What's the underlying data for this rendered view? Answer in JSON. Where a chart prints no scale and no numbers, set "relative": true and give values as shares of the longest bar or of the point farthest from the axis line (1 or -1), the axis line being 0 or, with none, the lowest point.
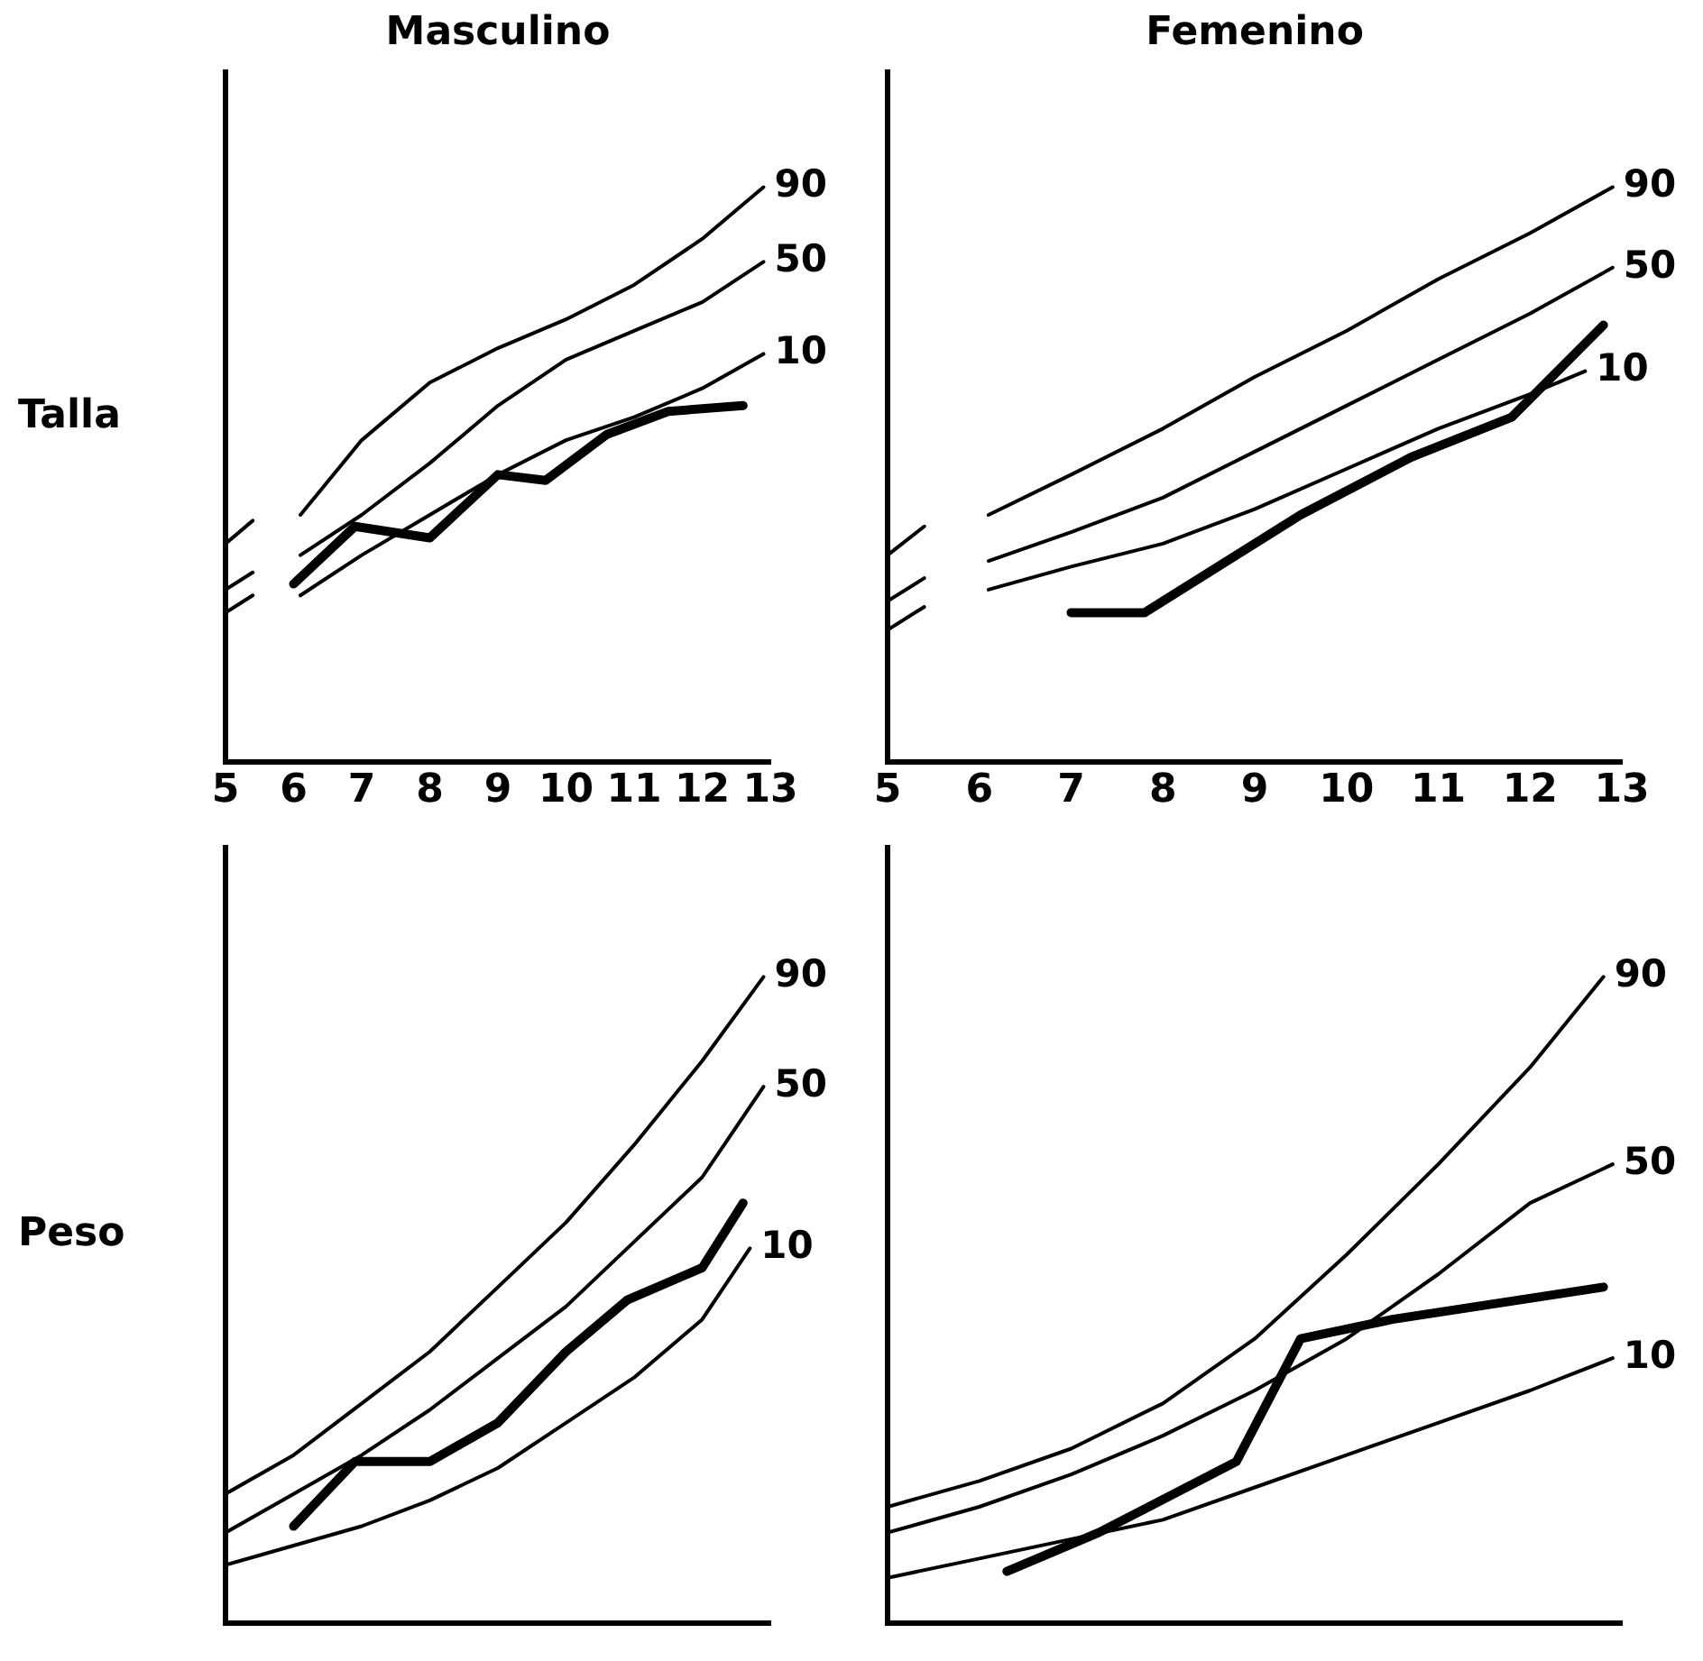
{
  "chart_data": [
    {
      "type": "line",
      "title": "Masculino",
      "ylabel": "Talla",
      "relative": true,
      "xlim": [
        5,
        13
      ],
      "xticks": [
        5,
        6,
        7,
        8,
        9,
        10,
        11,
        12,
        13
      ],
      "tick_labels": "x",
      "marker": "none",
      "grid": false,
      "series": [
        {
          "name": "90",
          "color": "#000000",
          "x": [
            5,
            5.4,
            5.7,
            6.1,
            7,
            8,
            9,
            10,
            11,
            12,
            12.9
          ],
          "values": [
            0.38,
            0.42,
            null,
            0.43,
            0.56,
            0.66,
            0.72,
            0.77,
            0.83,
            0.91,
            1
          ]
        },
        {
          "name": "50",
          "color": "#000000",
          "x": [
            5,
            5.4,
            5.7,
            6.1,
            7,
            8,
            9,
            10,
            11,
            12,
            12.9
          ],
          "values": [
            0.3,
            0.33,
            null,
            0.36,
            0.43,
            0.52,
            0.62,
            0.7,
            0.75,
            0.8,
            0.87
          ]
        },
        {
          "name": "10",
          "color": "#000000",
          "x": [
            5,
            5.4,
            5.7,
            6.1,
            7,
            8,
            9,
            10,
            11,
            12,
            12.9
          ],
          "values": [
            0.26,
            0.29,
            null,
            0.29,
            0.36,
            0.43,
            0.5,
            0.56,
            0.6,
            0.65,
            0.71
          ]
        },
        {
          "color": "#000000",
          "x": [
            6,
            6.9,
            8,
            9,
            9.7,
            10.6,
            11.5,
            12.6
          ],
          "values": [
            0.31,
            0.41,
            0.39,
            0.5,
            0.49,
            0.57,
            0.61,
            0.62
          ]
        }
      ]
    },
    {
      "type": "line",
      "title": "Femenino",
      "relative": true,
      "xlim": [
        5,
        13
      ],
      "xticks": [
        5,
        6,
        7,
        8,
        9,
        10,
        11,
        12,
        13
      ],
      "tick_labels": "x",
      "marker": "none",
      "grid": false,
      "series": [
        {
          "name": "90",
          "color": "#000000",
          "x": [
            5,
            5.4,
            5.7,
            6.1,
            7,
            8,
            9,
            10,
            11,
            12,
            12.9
          ],
          "values": [
            0.36,
            0.41,
            null,
            0.43,
            0.5,
            0.58,
            0.67,
            0.75,
            0.84,
            0.92,
            1
          ]
        },
        {
          "name": "50",
          "color": "#000000",
          "x": [
            5,
            5.4,
            5.7,
            6.1,
            7,
            8,
            9,
            10,
            11,
            12,
            12.9
          ],
          "values": [
            0.28,
            0.32,
            null,
            0.35,
            0.4,
            0.46,
            0.54,
            0.62,
            0.7,
            0.78,
            0.86
          ]
        },
        {
          "name": "10",
          "color": "#000000",
          "x": [
            5,
            5.4,
            5.7,
            6.1,
            7,
            8,
            9,
            10,
            11,
            12,
            12.6
          ],
          "values": [
            0.23,
            0.27,
            null,
            0.3,
            0.34,
            0.38,
            0.44,
            0.51,
            0.58,
            0.64,
            0.68
          ]
        },
        {
          "color": "#000000",
          "x": [
            7,
            7.8,
            9.5,
            10.7,
            11.8,
            12.8
          ],
          "values": [
            0.26,
            0.26,
            0.43,
            0.53,
            0.6,
            0.76
          ]
        }
      ]
    },
    {
      "type": "line",
      "ylabel": "Peso",
      "relative": true,
      "xlim": [
        5,
        13
      ],
      "xticks": [
        5,
        6,
        7,
        8,
        9,
        10,
        11,
        12,
        13
      ],
      "tick_labels": false,
      "marker": "none",
      "grid": false,
      "series": [
        {
          "name": "90",
          "color": "#000000",
          "x": [
            5,
            6,
            7,
            8,
            9,
            10,
            11,
            12,
            12.9
          ],
          "values": [
            0.2,
            0.26,
            0.34,
            0.42,
            0.52,
            0.62,
            0.74,
            0.87,
            1
          ]
        },
        {
          "name": "50",
          "color": "#000000",
          "x": [
            5,
            6,
            7,
            8,
            9,
            10,
            11,
            12,
            12.9
          ],
          "values": [
            0.14,
            0.2,
            0.26,
            0.33,
            0.41,
            0.49,
            0.59,
            0.69,
            0.83
          ]
        },
        {
          "name": "10",
          "color": "#000000",
          "x": [
            5,
            6,
            7,
            8,
            9,
            10,
            11,
            12,
            12.7
          ],
          "values": [
            0.09,
            0.12,
            0.15,
            0.19,
            0.24,
            0.31,
            0.38,
            0.47,
            0.58
          ]
        },
        {
          "color": "#000000",
          "x": [
            6,
            6.9,
            8,
            9,
            10,
            10.9,
            12,
            12.6
          ],
          "values": [
            0.15,
            0.25,
            0.25,
            0.31,
            0.42,
            0.5,
            0.55,
            0.65
          ]
        }
      ]
    },
    {
      "type": "line",
      "relative": true,
      "xlim": [
        5,
        13
      ],
      "xticks": [
        5,
        6,
        7,
        8,
        9,
        10,
        11,
        12,
        13
      ],
      "tick_labels": false,
      "marker": "none",
      "grid": false,
      "series": [
        {
          "name": "90",
          "color": "#000000",
          "x": [
            5,
            6,
            7,
            8,
            9,
            10,
            11,
            12,
            12.8
          ],
          "values": [
            0.18,
            0.22,
            0.27,
            0.34,
            0.44,
            0.57,
            0.71,
            0.86,
            1
          ]
        },
        {
          "name": "50",
          "color": "#000000",
          "x": [
            5,
            6,
            7,
            8,
            9,
            10,
            11,
            12,
            12.9
          ],
          "values": [
            0.14,
            0.18,
            0.23,
            0.29,
            0.36,
            0.44,
            0.54,
            0.65,
            0.71
          ]
        },
        {
          "name": "10",
          "color": "#000000",
          "x": [
            5,
            6,
            7,
            8,
            9,
            10,
            11,
            12,
            12.9
          ],
          "values": [
            0.07,
            0.1,
            0.13,
            0.16,
            0.21,
            0.26,
            0.31,
            0.36,
            0.41
          ]
        },
        {
          "color": "#000000",
          "x": [
            6.3,
            7.3,
            8.8,
            9.5,
            10.5,
            12.8
          ],
          "values": [
            0.08,
            0.14,
            0.25,
            0.44,
            0.47,
            0.52
          ]
        }
      ]
    }
  ]
}
